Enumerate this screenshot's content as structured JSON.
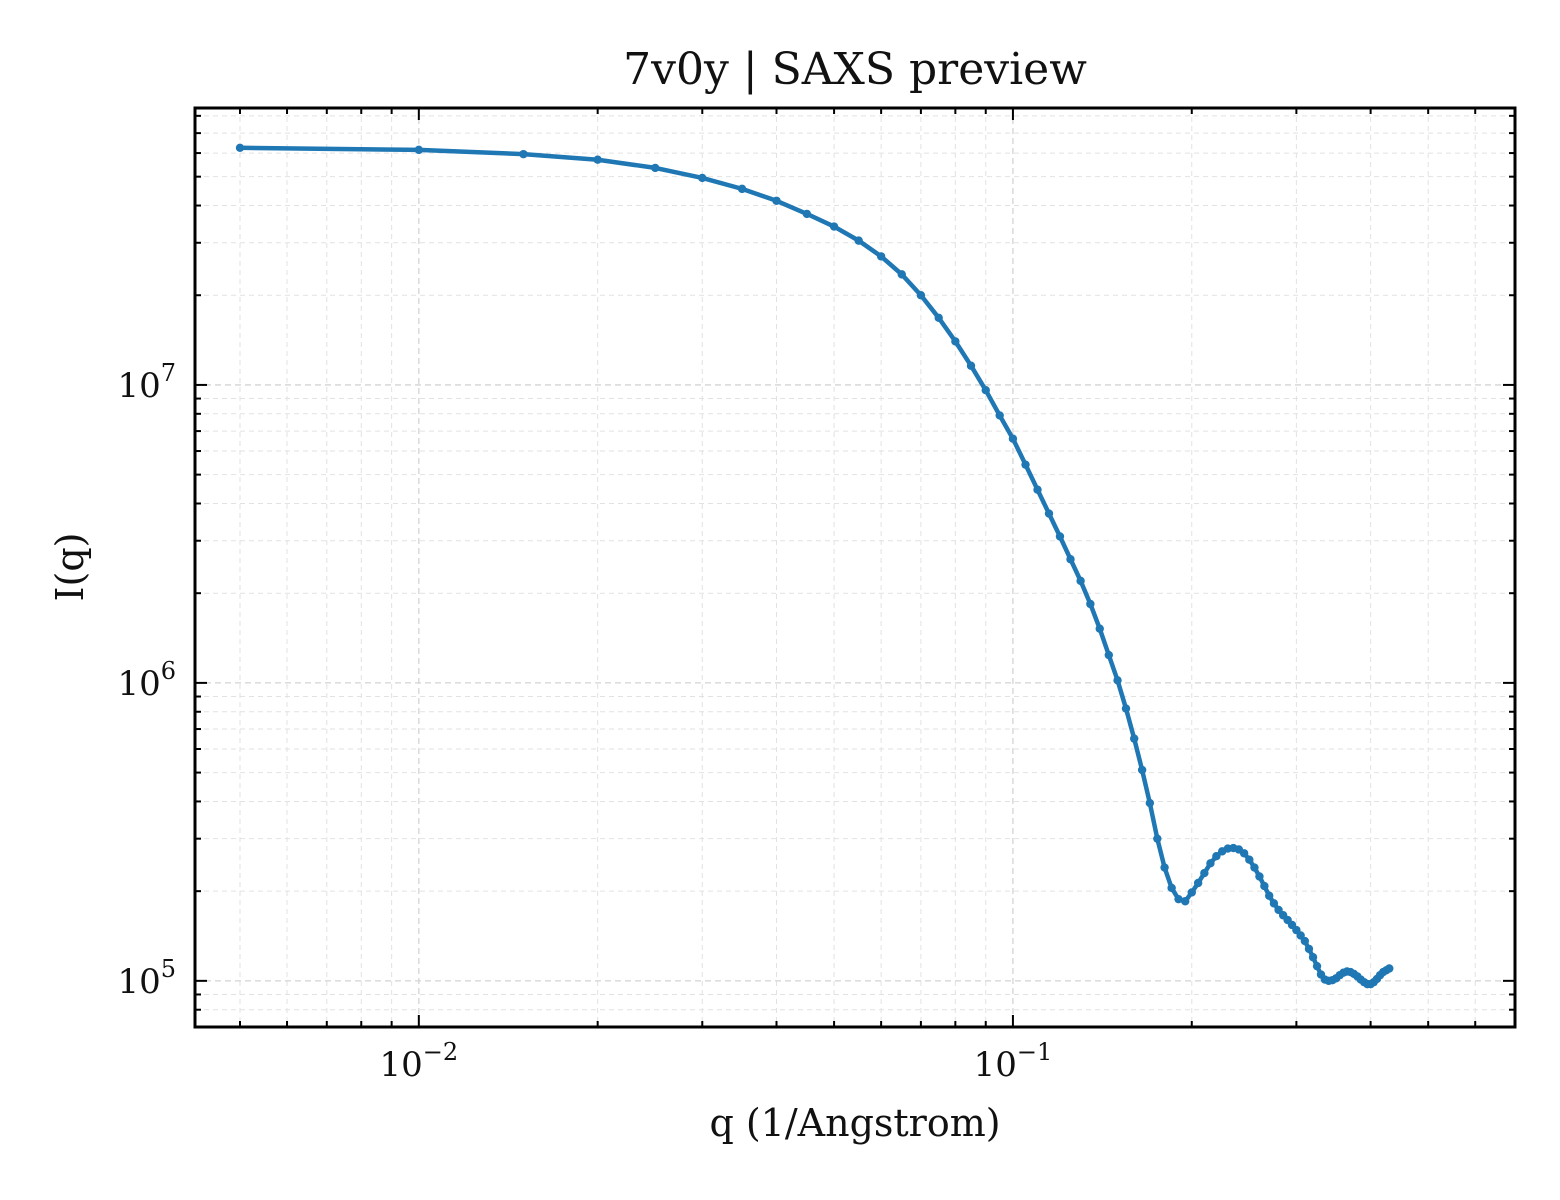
{
  "chart_data": {
    "type": "line",
    "title": "7v0y | SAXS preview",
    "xlabel": "q (1/Angstrom)",
    "ylabel": "I(q)",
    "xscale": "log",
    "yscale": "log",
    "xlim": [
      0.0042,
      0.7
    ],
    "ylim": [
      70000,
      85000000
    ],
    "grid": true,
    "legend": "none",
    "x_ticks": [
      {
        "value": 0.01,
        "base": "10",
        "exp": "−2"
      },
      {
        "value": 0.1,
        "base": "10",
        "exp": "−1"
      }
    ],
    "y_ticks": [
      {
        "value": 100000,
        "base": "10",
        "exp": "5"
      },
      {
        "value": 1000000,
        "base": "10",
        "exp": "6"
      },
      {
        "value": 10000000,
        "base": "10",
        "exp": "7"
      }
    ],
    "series": [
      {
        "color": "#1f77b4",
        "points": [
          [
            0.005,
            62500000
          ],
          [
            0.01,
            61500000
          ],
          [
            0.015,
            59500000
          ],
          [
            0.02,
            57000000
          ],
          [
            0.025,
            53500000
          ],
          [
            0.03,
            49500000
          ],
          [
            0.035,
            45500000
          ],
          [
            0.04,
            41500000
          ],
          [
            0.045,
            37500000
          ],
          [
            0.05,
            34000000
          ],
          [
            0.055,
            30500000
          ],
          [
            0.06,
            27000000
          ],
          [
            0.065,
            23500000
          ],
          [
            0.07,
            20000000
          ],
          [
            0.075,
            16800000
          ],
          [
            0.08,
            14000000
          ],
          [
            0.085,
            11600000
          ],
          [
            0.09,
            9600000
          ],
          [
            0.095,
            7900000
          ],
          [
            0.1,
            6600000
          ],
          [
            0.105,
            5400000
          ],
          [
            0.11,
            4450000
          ],
          [
            0.115,
            3700000
          ],
          [
            0.12,
            3100000
          ],
          [
            0.125,
            2600000
          ],
          [
            0.13,
            2200000
          ],
          [
            0.135,
            1840000
          ],
          [
            0.14,
            1520000
          ],
          [
            0.145,
            1240000
          ],
          [
            0.15,
            1020000
          ],
          [
            0.155,
            820000
          ],
          [
            0.16,
            650000
          ],
          [
            0.165,
            510000
          ],
          [
            0.17,
            395000
          ],
          [
            0.175,
            300000
          ],
          [
            0.18,
            240000
          ],
          [
            0.185,
            205000
          ],
          [
            0.19,
            188000
          ],
          [
            0.195,
            185000
          ],
          [
            0.2,
            198000
          ],
          [
            0.205,
            213000
          ],
          [
            0.21,
            230000
          ],
          [
            0.215,
            248000
          ],
          [
            0.22,
            262000
          ],
          [
            0.225,
            272000
          ],
          [
            0.23,
            278000
          ],
          [
            0.235,
            279000
          ],
          [
            0.24,
            276000
          ],
          [
            0.245,
            268000
          ],
          [
            0.25,
            255000
          ],
          [
            0.255,
            240000
          ],
          [
            0.26,
            224000
          ],
          [
            0.265,
            208000
          ],
          [
            0.27,
            193000
          ],
          [
            0.275,
            182000
          ],
          [
            0.28,
            173000
          ],
          [
            0.285,
            166000
          ],
          [
            0.29,
            160000
          ],
          [
            0.295,
            154000
          ],
          [
            0.3,
            148000
          ],
          [
            0.305,
            142000
          ],
          [
            0.31,
            136000
          ],
          [
            0.315,
            128000
          ],
          [
            0.32,
            120000
          ],
          [
            0.325,
            112000
          ],
          [
            0.33,
            105000
          ],
          [
            0.335,
            101000
          ],
          [
            0.34,
            100000
          ],
          [
            0.345,
            100500
          ],
          [
            0.35,
            102000
          ],
          [
            0.355,
            104500
          ],
          [
            0.36,
            106500
          ],
          [
            0.365,
            107500
          ],
          [
            0.37,
            107000
          ],
          [
            0.375,
            105500
          ],
          [
            0.38,
            103500
          ],
          [
            0.385,
            101000
          ],
          [
            0.39,
            99000
          ],
          [
            0.395,
            97500
          ],
          [
            0.4,
            97500
          ],
          [
            0.405,
            99000
          ],
          [
            0.41,
            101500
          ],
          [
            0.415,
            104500
          ],
          [
            0.42,
            107000
          ],
          [
            0.425,
            108500
          ],
          [
            0.43,
            110000
          ]
        ]
      }
    ]
  }
}
